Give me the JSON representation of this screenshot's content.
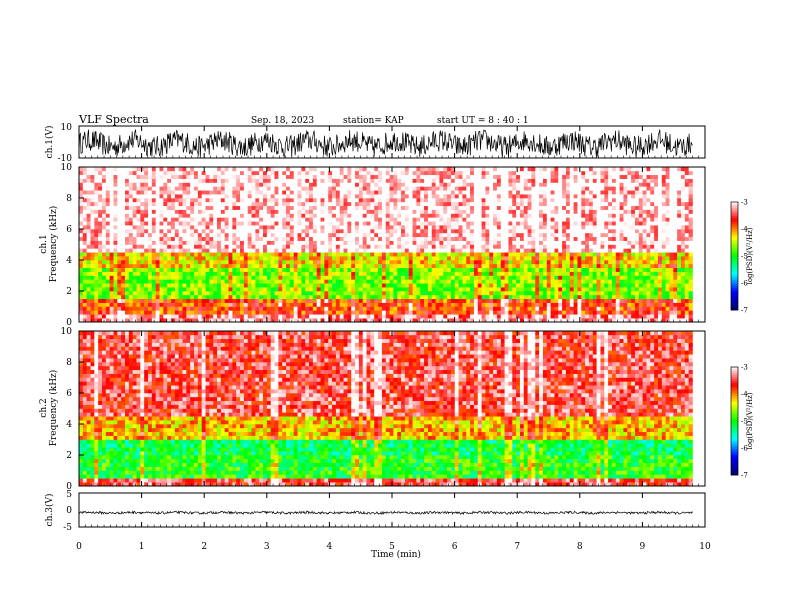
{
  "header": {
    "title": "VLF Spectra",
    "date": "Sep. 18, 2023",
    "station": "station= KAP",
    "start": "start  UT =  8 : 40 : 1"
  },
  "chart_data": [
    {
      "type": "line",
      "panel": "ch1-waveform",
      "ylabel": "ch.1(V)",
      "ylim": [
        -10,
        10
      ],
      "yticks": [
        "10",
        "-10"
      ],
      "x_range_min": [
        0,
        9.8
      ],
      "description_of_values": "noise-like waveform spanning roughly -8 to +8 V"
    },
    {
      "type": "heatmap",
      "panel": "ch1-spectrogram",
      "ylabel": "ch.1\nFrequency (kHz)",
      "ylim": [
        0,
        10
      ],
      "yticks": [
        "0",
        "2",
        "4",
        "6",
        "8",
        "10"
      ],
      "x_range_min": [
        0,
        9.8
      ],
      "colorbar": {
        "label": "log(PSD)(V²/Hz)",
        "ticks": [
          "-3",
          "-4",
          "-5",
          "-6",
          "-7"
        ],
        "range": [
          -7,
          -3
        ]
      },
      "bands_khz": [
        {
          "from": 0,
          "to": 0.5,
          "level": -3.3
        },
        {
          "from": 0.5,
          "to": 1.5,
          "level": -3.8
        },
        {
          "from": 1.5,
          "to": 3.5,
          "level": -4.7
        },
        {
          "from": 3.5,
          "to": 4.5,
          "level": -4.3
        },
        {
          "from": 4.5,
          "to": 10,
          "level": -3.1
        }
      ]
    },
    {
      "type": "heatmap",
      "panel": "ch2-spectrogram",
      "ylabel": "ch.2\nFrequency (kHz)",
      "ylim": [
        0,
        10
      ],
      "yticks": [
        "0",
        "2",
        "4",
        "6",
        "8",
        "10"
      ],
      "x_range_min": [
        0,
        9.8
      ],
      "colorbar": {
        "label": "log(PSD)(V²/Hz)",
        "ticks": [
          "-3",
          "-4",
          "-5",
          "-6",
          "-7"
        ],
        "range": [
          -7,
          -3
        ]
      },
      "bands_khz": [
        {
          "from": 0,
          "to": 0.5,
          "level": -3.5
        },
        {
          "from": 0.5,
          "to": 2.0,
          "level": -5.0
        },
        {
          "from": 2.0,
          "to": 3.0,
          "level": -5.2
        },
        {
          "from": 3.0,
          "to": 4.5,
          "level": -4.2
        },
        {
          "from": 4.5,
          "to": 10,
          "level": -3.5
        }
      ]
    },
    {
      "type": "line",
      "panel": "ch3-waveform",
      "ylabel": "ch.3(V)",
      "ylim": [
        -5,
        5
      ],
      "yticks": [
        "5",
        "0",
        "-5"
      ],
      "x_range_min": [
        0,
        9.8
      ],
      "description_of_values": "near-constant level around -0.8 V with small ripple"
    }
  ],
  "xaxis": {
    "label": "Time (min)",
    "ticks": [
      "0",
      "1",
      "2",
      "3",
      "4",
      "5",
      "6",
      "7",
      "8",
      "9",
      "10"
    ],
    "range": [
      0,
      10
    ]
  },
  "colors": {
    "psd_scale": [
      "#000066",
      "#0000ff",
      "#00ffff",
      "#00ff00",
      "#ffff00",
      "#ff0000",
      "#ffffff"
    ]
  }
}
